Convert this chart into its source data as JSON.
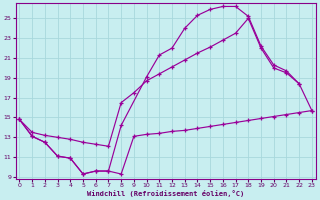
{
  "xlabel": "Windchill (Refroidissement éolien,°C)",
  "bg_color": "#c8eef0",
  "grid_color": "#a8d8dc",
  "line_color": "#990099",
  "xlim": [
    -0.3,
    23.3
  ],
  "ylim": [
    8.8,
    26.5
  ],
  "yticks": [
    9,
    11,
    13,
    15,
    17,
    19,
    21,
    23,
    25
  ],
  "xticks": [
    0,
    1,
    2,
    3,
    4,
    5,
    6,
    7,
    8,
    9,
    10,
    11,
    12,
    13,
    14,
    15,
    16,
    17,
    18,
    19,
    20,
    21,
    22,
    23
  ],
  "line1_x": [
    0,
    1,
    2,
    3,
    4,
    5,
    6,
    7,
    8,
    9,
    10,
    11,
    12,
    13,
    14,
    15,
    16,
    17,
    18,
    19,
    20,
    21,
    22,
    23
  ],
  "line1_y": [
    14.8,
    13.1,
    12.5,
    11.1,
    10.9,
    9.3,
    9.6,
    9.6,
    9.3,
    13.1,
    13.3,
    13.4,
    13.6,
    13.7,
    13.9,
    14.1,
    14.3,
    14.5,
    14.7,
    14.9,
    15.1,
    15.3,
    15.5,
    15.7
  ],
  "line2_x": [
    0,
    1,
    2,
    3,
    4,
    5,
    6,
    7,
    8,
    10,
    11,
    12,
    13,
    14,
    15,
    16,
    17,
    18,
    19,
    20,
    21,
    22
  ],
  "line2_y": [
    14.8,
    13.1,
    12.5,
    11.1,
    10.9,
    9.3,
    9.6,
    9.6,
    14.2,
    19.1,
    21.3,
    22.0,
    24.0,
    25.3,
    25.9,
    26.2,
    26.2,
    25.2,
    22.2,
    20.3,
    19.7,
    18.4
  ],
  "line3_x": [
    0,
    1,
    2,
    3,
    4,
    5,
    6,
    7,
    8,
    9,
    10,
    11,
    12,
    13,
    14,
    15,
    16,
    17,
    18,
    19,
    20,
    21,
    22,
    23
  ],
  "line3_y": [
    14.8,
    13.5,
    13.2,
    13.0,
    12.8,
    12.5,
    12.3,
    12.1,
    16.5,
    17.5,
    18.7,
    19.4,
    20.1,
    20.8,
    21.5,
    22.1,
    22.8,
    23.5,
    25.0,
    22.0,
    20.0,
    19.5,
    18.4,
    15.7
  ]
}
